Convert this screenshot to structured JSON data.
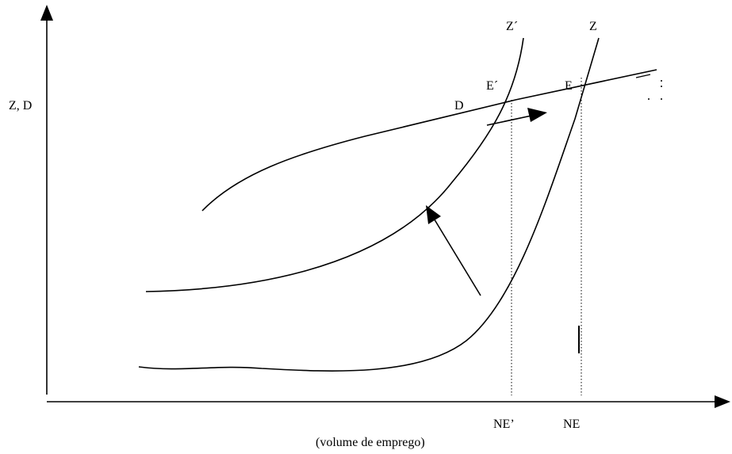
{
  "axes": {
    "y_label": "Z, D",
    "x_label": "(volume de emprego)"
  },
  "curves": {
    "d_label": "D",
    "z_label": "Z",
    "z_prime_label": "Z´"
  },
  "points": {
    "e_label": "E",
    "e_prime_label": "E´"
  },
  "x_ticks": {
    "ne_label": "NE",
    "ne_prime_label": "NE’"
  },
  "colors": {
    "ink": "#000000",
    "background": "#ffffff"
  }
}
